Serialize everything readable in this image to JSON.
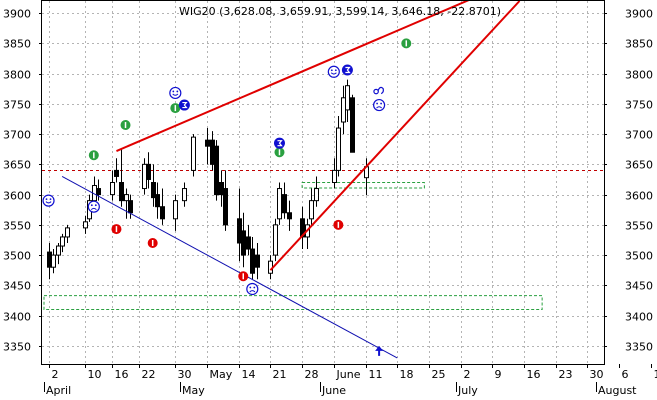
{
  "chart_data": {
    "type": "candlestick",
    "title": "WIG20 (3,628.08, 3,659.91, 3,599.14, 3,646.18, -22.8701)",
    "ylim": [
      3320,
      3920
    ],
    "y_ticks": [
      3350,
      3400,
      3450,
      3500,
      3550,
      3600,
      3650,
      3700,
      3750,
      3800,
      3850,
      3900
    ],
    "y_tick_labels": [
      "3350",
      "3400",
      "3450",
      "3500",
      "3550",
      "3600",
      "3650",
      "3700",
      "3750",
      "3800",
      "3850",
      "3900"
    ],
    "x_tick_labels": [
      "2",
      "10",
      "16",
      "22",
      "30",
      "May",
      "14",
      "21",
      "28",
      "June",
      "11",
      "18",
      "25",
      "2",
      "9",
      "16",
      "23",
      "30",
      "6",
      "1"
    ],
    "month_labels": [
      "April",
      "May",
      "June",
      "July",
      "August"
    ],
    "grid": true,
    "colors": {
      "background": "#ffffff",
      "axis_text": "#000000",
      "grid": "#b4b4b4",
      "candle": "#000000",
      "trend_red": "#e00000",
      "trend_blue": "#1010b0",
      "reference_line": "#c00000",
      "support_zone": "#2aa040",
      "bullish_signal": "#2aa040",
      "bearish_signal": "#e00000",
      "smiley": "#1010d0"
    },
    "candles": [
      {
        "date": "2-Apr",
        "open": 3505,
        "high": 3520,
        "low": 3460,
        "close": 3480
      },
      {
        "date": "3-Apr",
        "open": 3480,
        "high": 3510,
        "low": 3470,
        "close": 3500
      },
      {
        "date": "4-Apr",
        "open": 3500,
        "high": 3520,
        "low": 3485,
        "close": 3515
      },
      {
        "date": "5-Apr",
        "open": 3515,
        "high": 3535,
        "low": 3505,
        "close": 3530
      },
      {
        "date": "6-Apr",
        "open": 3530,
        "high": 3550,
        "low": 3520,
        "close": 3545
      },
      {
        "date": "10-Apr",
        "open": 3545,
        "high": 3565,
        "low": 3535,
        "close": 3555
      },
      {
        "date": "11-Apr",
        "open": 3560,
        "high": 3600,
        "low": 3555,
        "close": 3590
      },
      {
        "date": "12-Apr",
        "open": 3590,
        "high": 3630,
        "low": 3580,
        "close": 3615
      },
      {
        "date": "13-Apr",
        "open": 3610,
        "high": 3625,
        "low": 3590,
        "close": 3600
      },
      {
        "date": "16-Apr",
        "open": 3600,
        "high": 3640,
        "low": 3590,
        "close": 3620
      },
      {
        "date": "17-Apr",
        "open": 3640,
        "high": 3660,
        "low": 3620,
        "close": 3630
      },
      {
        "date": "18-Apr",
        "open": 3620,
        "high": 3675,
        "low": 3580,
        "close": 3590
      },
      {
        "date": "19-Apr",
        "open": 3590,
        "high": 3610,
        "low": 3560,
        "close": 3600
      },
      {
        "date": "20-Apr",
        "open": 3590,
        "high": 3600,
        "low": 3560,
        "close": 3570
      },
      {
        "date": "23-Apr",
        "open": 3610,
        "high": 3660,
        "low": 3600,
        "close": 3650
      },
      {
        "date": "24-Apr",
        "open": 3650,
        "high": 3670,
        "low": 3610,
        "close": 3625
      },
      {
        "date": "25-Apr",
        "open": 3620,
        "high": 3650,
        "low": 3580,
        "close": 3595
      },
      {
        "date": "26-Apr",
        "open": 3600,
        "high": 3620,
        "low": 3560,
        "close": 3580
      },
      {
        "date": "27-Apr",
        "open": 3580,
        "high": 3610,
        "low": 3550,
        "close": 3560
      },
      {
        "date": "30-Apr",
        "open": 3560,
        "high": 3600,
        "low": 3540,
        "close": 3590
      },
      {
        "date": "2-May",
        "open": 3590,
        "high": 3620,
        "low": 3580,
        "close": 3610
      },
      {
        "date": "4-May",
        "open": 3640,
        "high": 3700,
        "low": 3630,
        "close": 3695
      },
      {
        "date": "7-May",
        "open": 3690,
        "high": 3710,
        "low": 3650,
        "close": 3680
      },
      {
        "date": "8-May",
        "open": 3690,
        "high": 3705,
        "low": 3640,
        "close": 3650
      },
      {
        "date": "9-May",
        "open": 3680,
        "high": 3690,
        "low": 3590,
        "close": 3600
      },
      {
        "date": "10-May",
        "open": 3620,
        "high": 3640,
        "low": 3580,
        "close": 3600
      },
      {
        "date": "11-May",
        "open": 3610,
        "high": 3640,
        "low": 3540,
        "close": 3550
      },
      {
        "date": "14-May",
        "open": 3560,
        "high": 3610,
        "low": 3490,
        "close": 3520
      },
      {
        "date": "15-May",
        "open": 3540,
        "high": 3570,
        "low": 3480,
        "close": 3500
      },
      {
        "date": "16-May",
        "open": 3530,
        "high": 3550,
        "low": 3500,
        "close": 3510
      },
      {
        "date": "17-May",
        "open": 3510,
        "high": 3530,
        "low": 3460,
        "close": 3470
      },
      {
        "date": "18-May",
        "open": 3500,
        "high": 3520,
        "low": 3460,
        "close": 3480
      },
      {
        "date": "21-May",
        "open": 3470,
        "high": 3500,
        "low": 3460,
        "close": 3490
      },
      {
        "date": "22-May",
        "open": 3500,
        "high": 3560,
        "low": 3490,
        "close": 3550
      },
      {
        "date": "23-May",
        "open": 3560,
        "high": 3620,
        "low": 3550,
        "close": 3610
      },
      {
        "date": "24-May",
        "open": 3600,
        "high": 3620,
        "low": 3560,
        "close": 3570
      },
      {
        "date": "25-May",
        "open": 3570,
        "high": 3590,
        "low": 3540,
        "close": 3560
      },
      {
        "date": "28-May",
        "open": 3560,
        "high": 3580,
        "low": 3510,
        "close": 3530
      },
      {
        "date": "29-May",
        "open": 3530,
        "high": 3560,
        "low": 3510,
        "close": 3550
      },
      {
        "date": "30-May",
        "open": 3560,
        "high": 3610,
        "low": 3550,
        "close": 3590
      },
      {
        "date": "31-May",
        "open": 3590,
        "high": 3630,
        "low": 3580,
        "close": 3610
      },
      {
        "date": "4-Jun",
        "open": 3620,
        "high": 3660,
        "low": 3610,
        "close": 3640
      },
      {
        "date": "5-Jun",
        "open": 3640,
        "high": 3730,
        "low": 3630,
        "close": 3710
      },
      {
        "date": "6-Jun",
        "open": 3720,
        "high": 3780,
        "low": 3700,
        "close": 3760
      },
      {
        "date": "7-Jun",
        "open": 3740,
        "high": 3790,
        "low": 3720,
        "close": 3780
      },
      {
        "date": "8-Jun",
        "open": 3760,
        "high": 3765,
        "low": 3670,
        "close": 3670
      },
      {
        "date": "11-Jun",
        "open": 3628,
        "high": 3660,
        "low": 3599,
        "close": 3646
      }
    ],
    "trend_lines": [
      {
        "name": "red-upper",
        "from": [
          "17-Apr",
          3672
        ],
        "to": [
          "8-Jul",
          3935
        ]
      },
      {
        "name": "red-lower",
        "from": [
          "21-May",
          3475
        ],
        "to": [
          "15-Jul",
          3920
        ]
      },
      {
        "name": "blue-down",
        "from": [
          "5-Apr",
          3630
        ],
        "to": [
          "18-Jun",
          3330
        ]
      }
    ],
    "reference_lines": [
      {
        "name": "resistance-3640",
        "value": 3640,
        "style": "dotted"
      }
    ],
    "zones": [
      {
        "name": "zone-upper",
        "from_date": "28-May",
        "to_date": "24-Jun",
        "y_low": 3611,
        "y_high": 3620
      },
      {
        "name": "zone-lower",
        "from_date": "1-Apr",
        "to_date": "20-Jul",
        "y_low": 3410,
        "y_high": 3433
      }
    ],
    "signals": [
      {
        "type": "bullish",
        "date": "12-Apr",
        "value": 3665
      },
      {
        "type": "bullish",
        "date": "19-Apr",
        "value": 3715
      },
      {
        "type": "bullish",
        "date": "30-Apr",
        "value": 3743
      },
      {
        "type": "bullish",
        "date": "23-May",
        "value": 3670
      },
      {
        "type": "bullish",
        "date": "20-Jun",
        "value": 3850
      },
      {
        "type": "bearish",
        "date": "17-Apr",
        "value": 3543
      },
      {
        "type": "bearish",
        "date": "25-Apr",
        "value": 3520
      },
      {
        "type": "bearish",
        "date": "15-May",
        "value": 3465
      },
      {
        "type": "bearish",
        "date": "5-Jun",
        "value": 3550
      },
      {
        "type": "happy",
        "date": "2-Apr",
        "value": 3590
      },
      {
        "type": "happy",
        "date": "4-Jun",
        "value": 3803
      },
      {
        "type": "happy",
        "date": "30-Apr",
        "value": 3768
      },
      {
        "type": "sad",
        "date": "12-Apr",
        "value": 3580
      },
      {
        "type": "sad",
        "date": "17-May",
        "value": 3444
      },
      {
        "type": "sad",
        "date": "14-Jun",
        "value": 3748
      },
      {
        "type": "number",
        "date": "2-May",
        "value": 3748
      },
      {
        "type": "number",
        "date": "23-May",
        "value": 3685
      },
      {
        "type": "number",
        "date": "7-Jun",
        "value": 3806
      },
      {
        "type": "leo",
        "date": "14-Jun",
        "value": 3772
      },
      {
        "type": "arrow-up",
        "date": "14-Jun",
        "value": 3340
      }
    ]
  }
}
